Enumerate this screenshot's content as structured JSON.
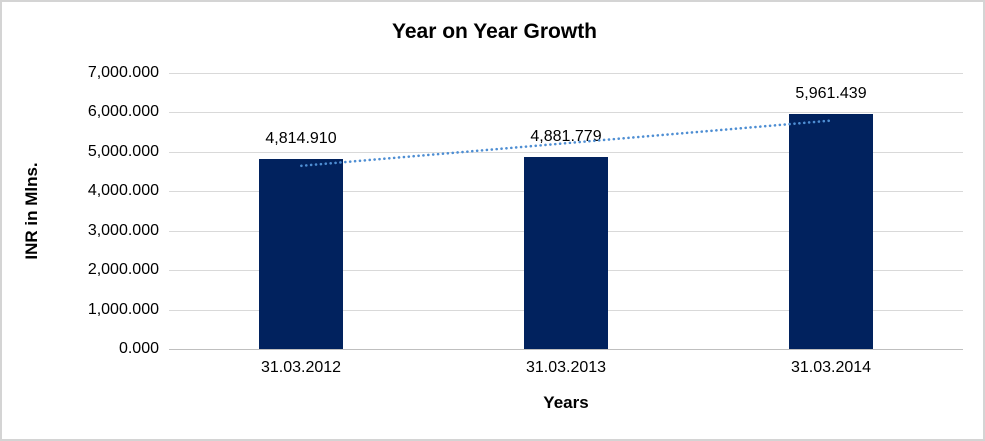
{
  "chart_data": {
    "type": "bar",
    "title": "Year on Year Growth",
    "xlabel": "Years",
    "ylabel": "INR in Mlns.",
    "categories": [
      "31.03.2012",
      "31.03.2013",
      "31.03.2014"
    ],
    "values": [
      4814.91,
      4881.779,
      5961.439
    ],
    "data_labels": [
      "4,814.910",
      "4,881.779",
      "5,961.439"
    ],
    "y_ticks": [
      "0.000",
      "1,000.000",
      "2,000.000",
      "3,000.000",
      "4,000.000",
      "5,000.000",
      "6,000.000",
      "7,000.000"
    ],
    "ylim": [
      0,
      7000
    ],
    "grid": true,
    "legend_position": "none",
    "trendline": {
      "type": "linear",
      "style": "dotted"
    },
    "colors": {
      "bar": "#01225e",
      "trendline": "#4e8ed3",
      "gridline": "#d9d9d9",
      "axis_line": "#bfbfbf",
      "text": "#000000",
      "background": "#ffffff",
      "border": "#d4d4d4"
    }
  }
}
